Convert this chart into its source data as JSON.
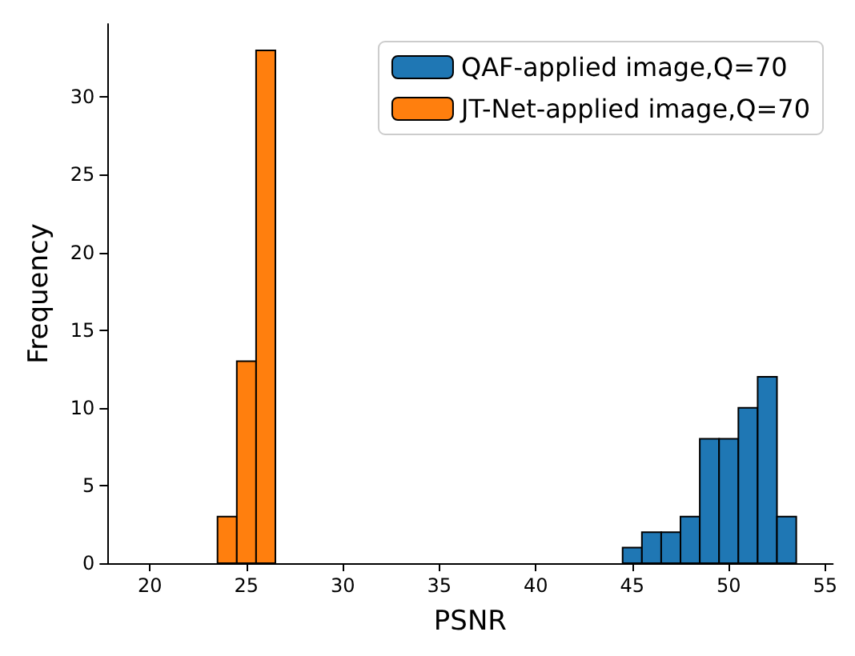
{
  "chart_data": {
    "type": "histogram",
    "xlabel": "PSNR",
    "ylabel": "Frequency",
    "bins": [
      19.5,
      20.5,
      21.5,
      22.5,
      23.5,
      24.5,
      25.5,
      26.5,
      27.5,
      28.5,
      29.5,
      30.5,
      31.5,
      32.5,
      33.5,
      34.5,
      35.5,
      36.5,
      37.5,
      38.5,
      39.5,
      40.5,
      41.5,
      42.5,
      43.5,
      44.5,
      45.5,
      46.5,
      47.5,
      48.5,
      49.5,
      50.5,
      51.5,
      52.5,
      53.5,
      54.5
    ],
    "series": [
      {
        "name": "QAF-applied image,Q=70",
        "color": "#1f77b4",
        "values": [
          0,
          0,
          0,
          0,
          0,
          0,
          0,
          0,
          0,
          0,
          0,
          0,
          0,
          0,
          0,
          0,
          0,
          0,
          0,
          0,
          0,
          0,
          0,
          0,
          0,
          1,
          2,
          2,
          3,
          8,
          8,
          10,
          12,
          3,
          0
        ]
      },
      {
        "name": "JT-Net-applied image,Q=70",
        "color": "#ff7f0e",
        "values": [
          0,
          0,
          0,
          0,
          3,
          13,
          33,
          0,
          0,
          0,
          0,
          0,
          0,
          0,
          0,
          0,
          0,
          0,
          0,
          0,
          0,
          0,
          0,
          0,
          0,
          0,
          0,
          0,
          0,
          0,
          0,
          0,
          0,
          0,
          0
        ]
      }
    ],
    "xlim": [
      17.8,
      55.4
    ],
    "ylim": [
      0,
      34.7
    ],
    "xticks": [
      20,
      25,
      30,
      35,
      40,
      45,
      50,
      55
    ],
    "yticks": [
      0,
      5,
      10,
      15,
      20,
      25,
      30
    ],
    "grid": false,
    "legend": "top right"
  }
}
